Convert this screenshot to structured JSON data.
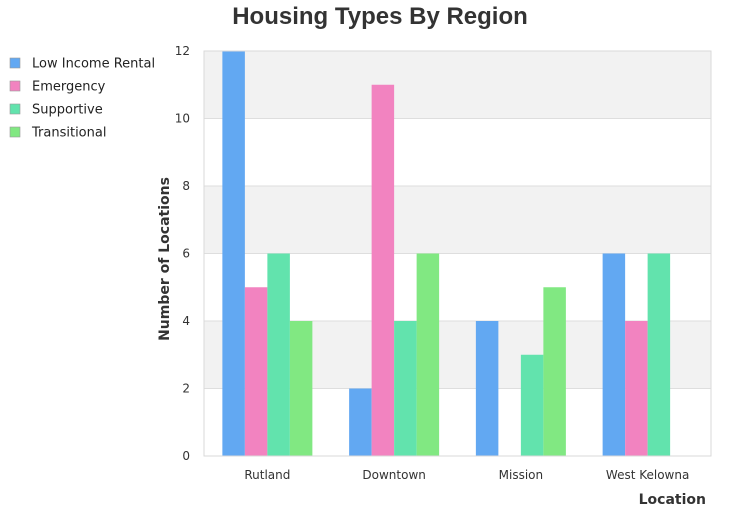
{
  "chart_data": {
    "type": "bar",
    "title": "Housing Types By Region",
    "xlabel": "Location",
    "ylabel": "Number of Locations",
    "categories": [
      "Rutland",
      "Downtown",
      "Mission",
      "West Kelowna"
    ],
    "series": [
      {
        "name": "Low Income Rental",
        "color": "#62a8f2",
        "values": [
          12,
          2,
          4,
          6
        ]
      },
      {
        "name": "Emergency",
        "color": "#f283c0",
        "values": [
          5,
          11,
          0,
          4
        ]
      },
      {
        "name": "Supportive",
        "color": "#62e3ad",
        "values": [
          6,
          4,
          3,
          6
        ]
      },
      {
        "name": "Transitional",
        "color": "#81e882",
        "values": [
          4,
          6,
          5,
          0
        ]
      }
    ],
    "ylim": [
      0,
      12
    ],
    "yticks": [
      0,
      2,
      4,
      6,
      8,
      10,
      12
    ],
    "grid": true,
    "legend": "top-left"
  }
}
